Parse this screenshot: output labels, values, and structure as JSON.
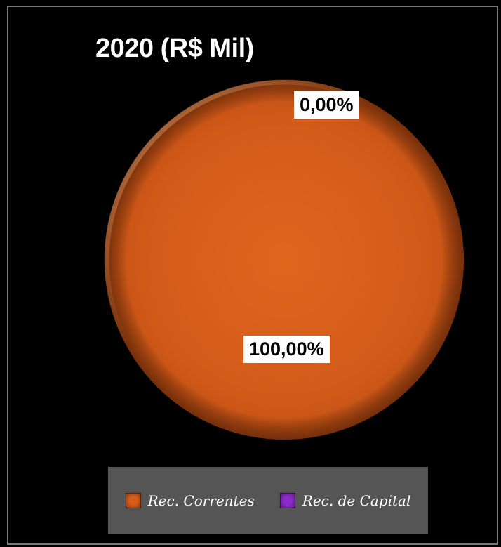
{
  "chart_data": {
    "type": "pie",
    "title": "2020 (R$ Mil)",
    "categories": [
      "Rec. Correntes",
      "Rec. de Capital"
    ],
    "values": [
      100.0,
      0.0
    ],
    "data_labels": [
      "100,00%",
      "0,00%"
    ],
    "colors": [
      "#d85c18",
      "#8a2bc9"
    ],
    "legend_position": "bottom",
    "legend": [
      "Rec. Correntes",
      "Rec. de Capital"
    ]
  }
}
